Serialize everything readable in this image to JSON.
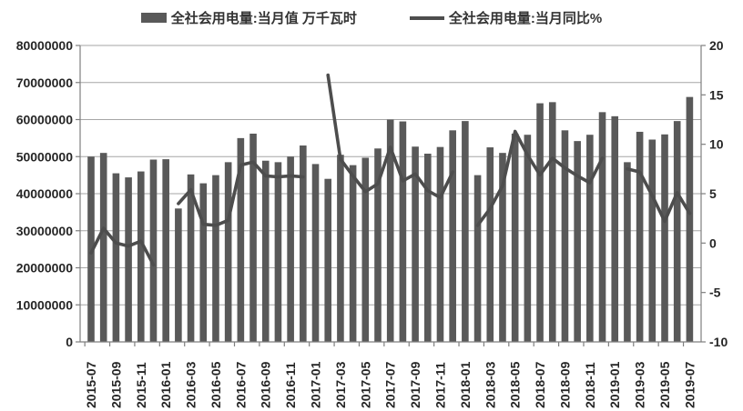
{
  "legend": {
    "bar_label": "全社会用电量:当月值 万千瓦时",
    "line_label": "全社会用电量:当月同比%"
  },
  "chart_data": {
    "type": "bar",
    "subtype": "bar-line-combo",
    "title": "",
    "xlabel": "",
    "ylabel_left": "全社会用电量:当月值 万千瓦时",
    "ylabel_right": "全社会用电量:当月同比%",
    "grid": "horizontal",
    "legend_position": "top",
    "categories": [
      "2015-07",
      "2015-08",
      "2015-09",
      "2015-10",
      "2015-11",
      "2015-12",
      "2016-01",
      "2016-02",
      "2016-03",
      "2016-04",
      "2016-05",
      "2016-06",
      "2016-07",
      "2016-08",
      "2016-09",
      "2016-10",
      "2016-11",
      "2016-12",
      "2017-01",
      "2017-02",
      "2017-03",
      "2017-04",
      "2017-05",
      "2017-06",
      "2017-07",
      "2017-08",
      "2017-09",
      "2017-10",
      "2017-11",
      "2017-12",
      "2018-01",
      "2018-02",
      "2018-03",
      "2018-04",
      "2018-05",
      "2018-06",
      "2018-07",
      "2018-08",
      "2018-09",
      "2018-10",
      "2018-11",
      "2018-12",
      "2019-01",
      "2019-02",
      "2019-03",
      "2019-04",
      "2019-05",
      "2019-06",
      "2019-07"
    ],
    "series": [
      {
        "name": "全社会用电量:当月值 万千瓦时",
        "type": "bar",
        "axis": "left",
        "values": [
          50000000,
          51000000,
          45500000,
          44400000,
          46000000,
          49200000,
          49300000,
          36000000,
          45200000,
          42800000,
          45000000,
          48500000,
          55000000,
          56200000,
          48900000,
          48500000,
          50000000,
          53000000,
          48000000,
          44000000,
          50500000,
          47700000,
          49700000,
          52200000,
          60000000,
          59500000,
          52700000,
          50800000,
          52600000,
          57100000,
          59600000,
          45000000,
          52500000,
          51000000,
          56200000,
          55900000,
          64400000,
          64700000,
          57100000,
          54200000,
          55900000,
          62000000,
          60900000,
          48500000,
          56700000,
          54600000,
          56000000,
          59600000,
          66100000
        ]
      },
      {
        "name": "全社会用电量:当月同比%",
        "type": "line",
        "axis": "right",
        "values": [
          -1.0,
          1.5,
          0.0,
          -0.3,
          0.2,
          -2.2,
          null,
          4.0,
          5.4,
          1.9,
          1.8,
          2.3,
          7.9,
          8.2,
          6.8,
          6.7,
          6.8,
          6.7,
          null,
          17.0,
          8.5,
          6.8,
          5.2,
          6.0,
          9.7,
          6.3,
          7.0,
          5.3,
          4.6,
          7.2,
          null,
          1.8,
          3.5,
          5.8,
          11.3,
          8.9,
          6.9,
          8.6,
          7.6,
          6.8,
          6.1,
          8.6,
          null,
          7.5,
          7.2,
          4.8,
          2.2,
          5.1,
          3.0
        ]
      }
    ],
    "left_axis": {
      "min": 0,
      "max": 80000000,
      "step": 10000000,
      "tick_labels": [
        "0",
        "10000000",
        "20000000",
        "30000000",
        "40000000",
        "50000000",
        "60000000",
        "70000000",
        "80000000"
      ]
    },
    "right_axis": {
      "min": -10,
      "max": 20,
      "step": 5,
      "tick_labels": [
        "-10",
        "-5",
        "0",
        "5",
        "10",
        "15",
        "20"
      ]
    },
    "x_tick_labels": [
      "2015-07",
      "2015-09",
      "2015-11",
      "2016-01",
      "2016-03",
      "2016-05",
      "2016-07",
      "2016-09",
      "2016-11",
      "2017-01",
      "2017-03",
      "2017-05",
      "2017-07",
      "2017-09",
      "2017-11",
      "2018-01",
      "2018-03",
      "2018-05",
      "2018-07",
      "2018-09",
      "2018-11",
      "2019-01",
      "2019-03",
      "2019-05",
      "2019-07"
    ],
    "colors": {
      "bar": "#595959",
      "line": "#4d4d4d",
      "grid": "#a6a6a6",
      "axis": "#7f7f7f",
      "text": "#262626",
      "background": "#ffffff"
    }
  }
}
